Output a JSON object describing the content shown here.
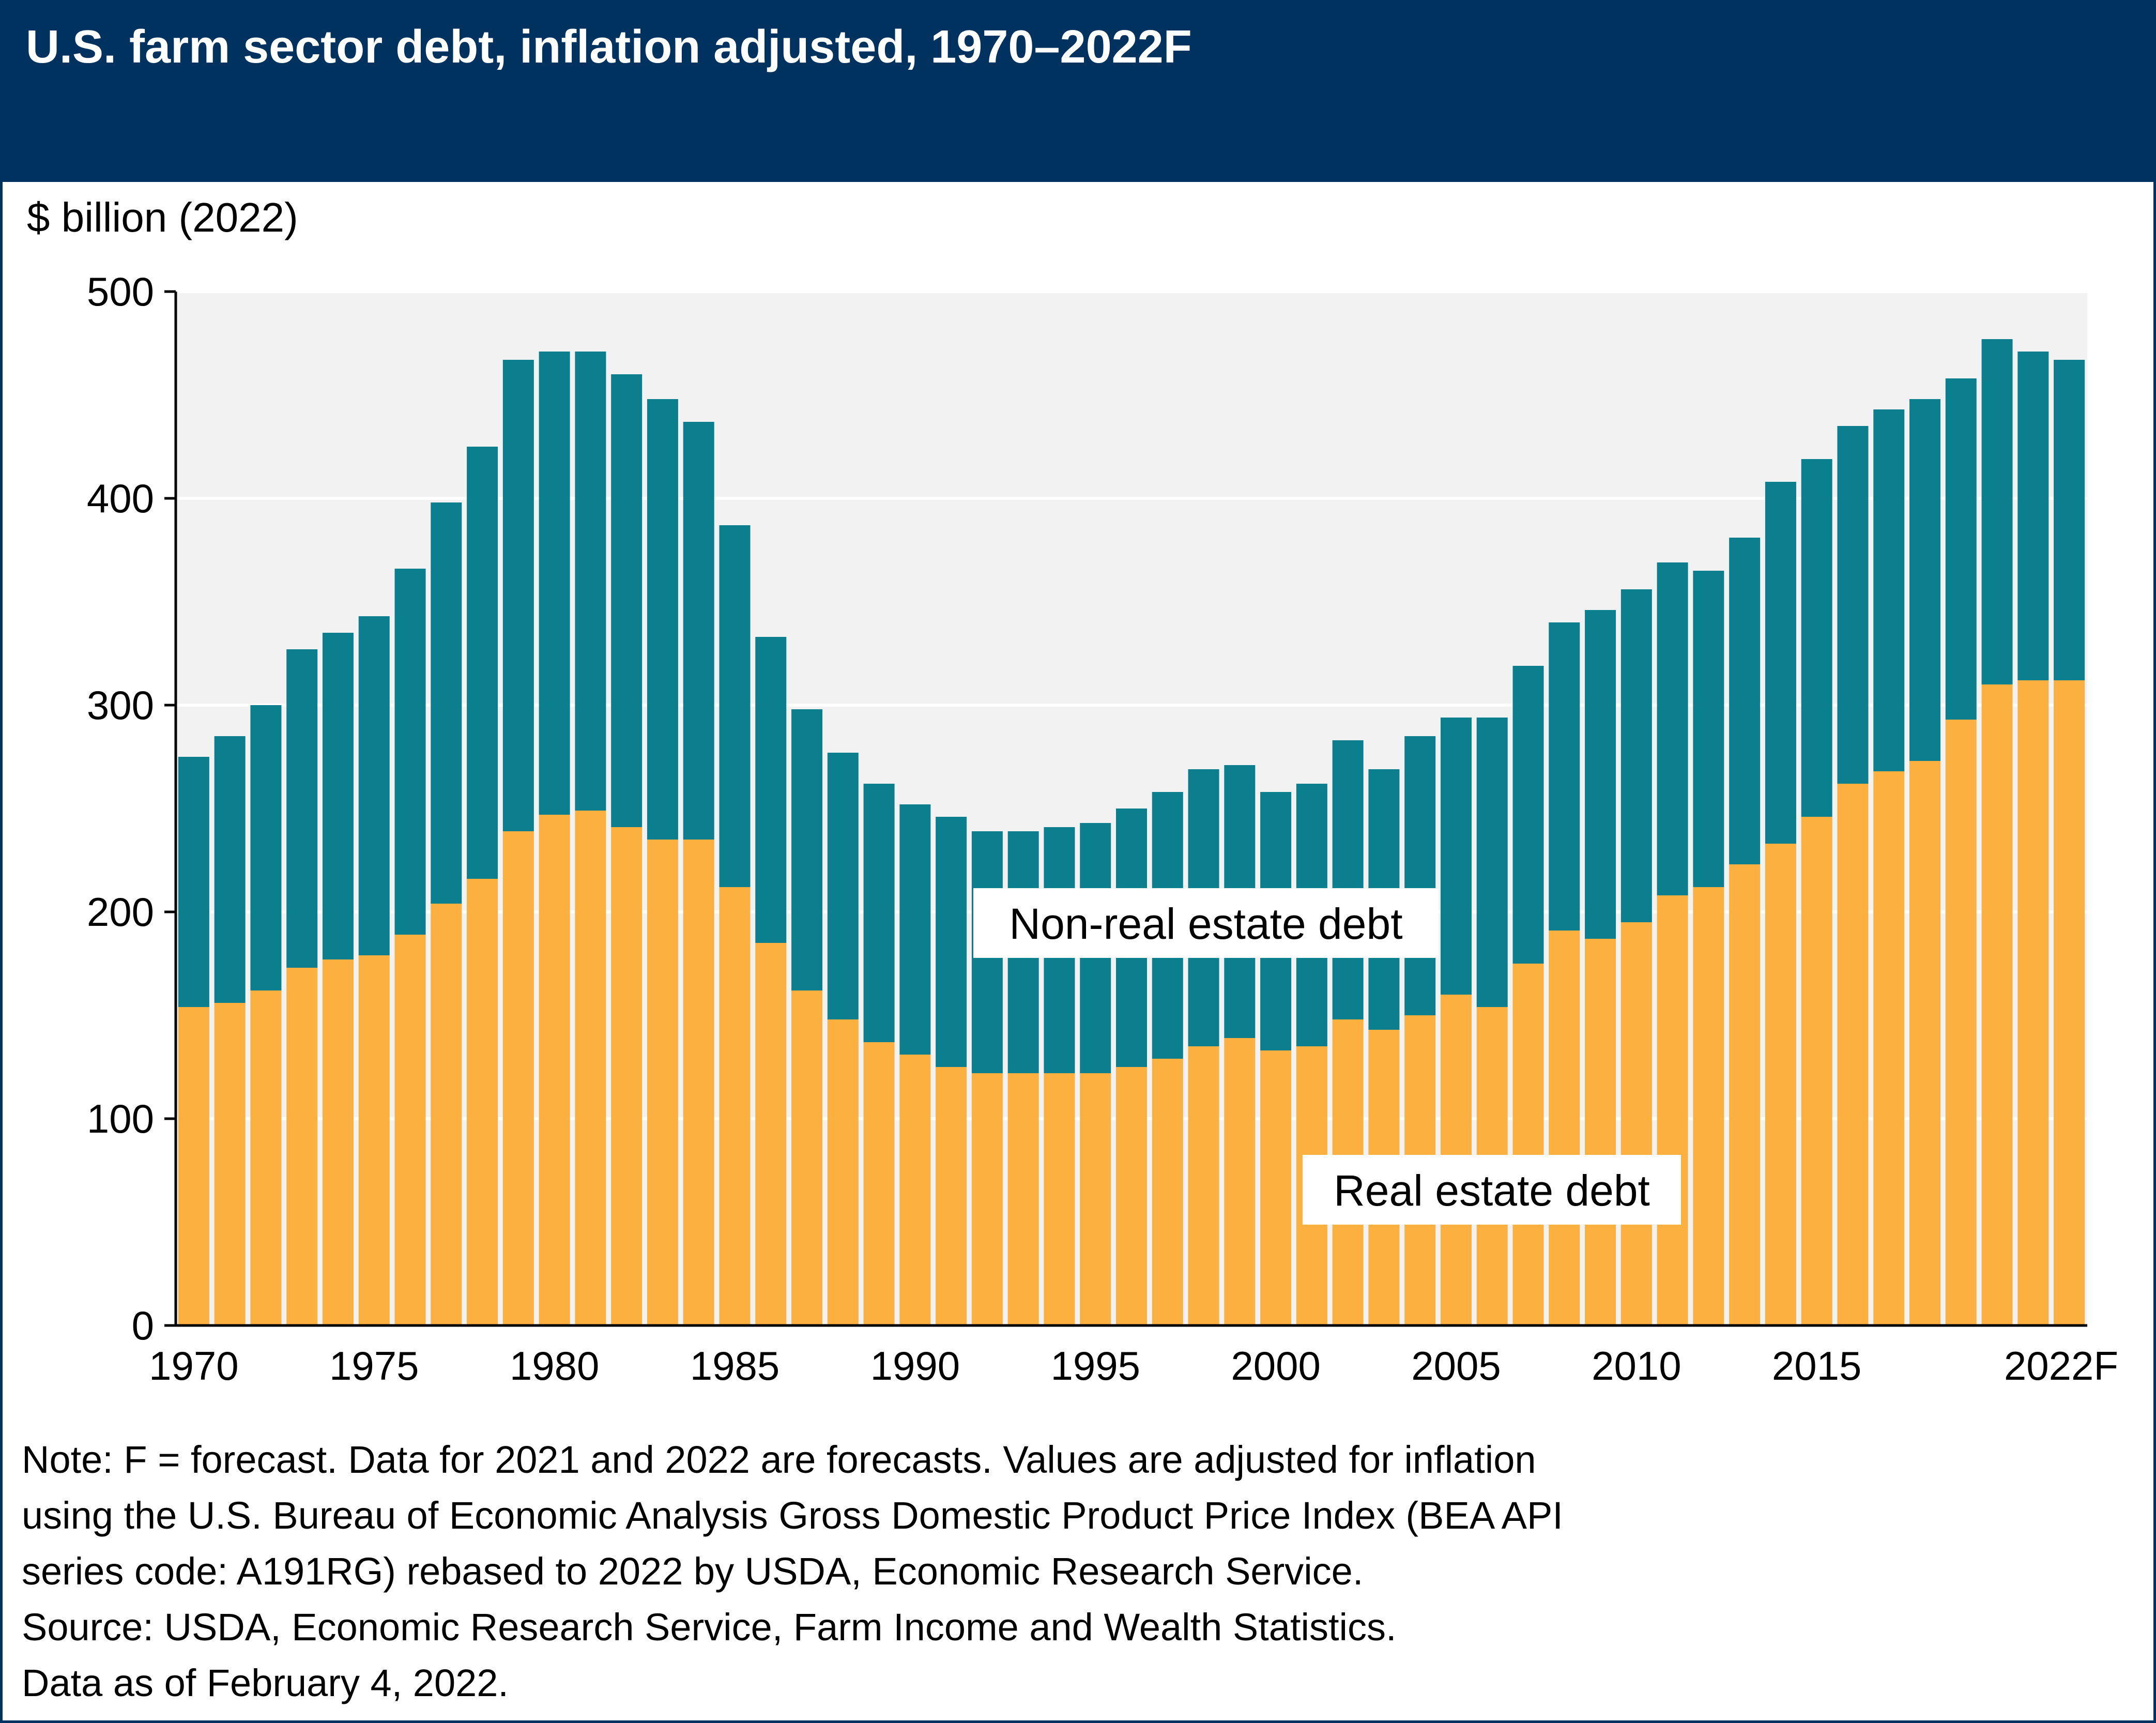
{
  "header": {
    "title": "U.S. farm sector debt, inflation adjusted, 1970–2022F"
  },
  "colors": {
    "header": "#00325f",
    "real_estate": "#fbb040",
    "non_real_estate": "#0b7f8d",
    "plot_background": "#f2f2f2"
  },
  "chart_data": {
    "type": "bar",
    "stacked": true,
    "title": "U.S. farm sector debt, inflation adjusted, 1970–2022F",
    "ylabel": "$ billion (2022)",
    "xlabel": "",
    "ylim": [
      0,
      500
    ],
    "yticks": [
      0,
      100,
      200,
      300,
      400,
      500
    ],
    "xtick_labels": [
      "1970",
      "1975",
      "1980",
      "1985",
      "1990",
      "1995",
      "2000",
      "2005",
      "2010",
      "2015",
      "2022F"
    ],
    "xtick_years": [
      1970,
      1975,
      1980,
      1985,
      1990,
      1995,
      2000,
      2005,
      2010,
      2015,
      2022
    ],
    "grid": "horizontal",
    "categories": [
      1970,
      1971,
      1972,
      1973,
      1974,
      1975,
      1976,
      1977,
      1978,
      1979,
      1980,
      1981,
      1982,
      1983,
      1984,
      1985,
      1986,
      1987,
      1988,
      1989,
      1990,
      1991,
      1992,
      1993,
      1994,
      1995,
      1996,
      1997,
      1998,
      1999,
      2000,
      2001,
      2002,
      2003,
      2004,
      2005,
      2006,
      2007,
      2008,
      2009,
      2010,
      2011,
      2012,
      2013,
      2014,
      2015,
      2016,
      2017,
      2018,
      2019,
      2020,
      2021,
      2022
    ],
    "series": [
      {
        "name": "Real estate debt",
        "color": "#fbb040",
        "values": [
          154,
          156,
          162,
          173,
          177,
          179,
          189,
          204,
          216,
          239,
          247,
          249,
          241,
          235,
          235,
          212,
          185,
          162,
          148,
          137,
          131,
          125,
          122,
          122,
          122,
          122,
          125,
          129,
          135,
          139,
          133,
          135,
          148,
          143,
          150,
          160,
          154,
          175,
          191,
          187,
          195,
          208,
          212,
          223,
          233,
          246,
          262,
          268,
          273,
          293,
          310,
          312,
          312
        ]
      },
      {
        "name": "Non-real estate debt",
        "color": "#0b7f8d",
        "values": [
          121,
          129,
          138,
          154,
          158,
          164,
          177,
          194,
          209,
          228,
          224,
          222,
          219,
          213,
          202,
          175,
          148,
          136,
          129,
          125,
          121,
          121,
          117,
          117,
          119,
          121,
          125,
          129,
          134,
          132,
          125,
          127,
          135,
          126,
          135,
          134,
          140,
          144,
          149,
          159,
          161,
          161,
          153,
          158,
          175,
          173,
          173,
          175,
          175,
          165,
          167,
          159,
          155
        ]
      }
    ]
  },
  "notes": [
    "Note: F = forecast. Data for 2021 and 2022 are forecasts. Values are adjusted for inflation",
    "using the U.S. Bureau of Economic Analysis Gross Domestic Product Price Index (BEA API",
    "series code: A191RG) rebased to 2022 by USDA, Economic Research Service.",
    "Source: USDA, Economic Research Service, Farm Income and Wealth Statistics.",
    "Data as of February 4, 2022."
  ]
}
